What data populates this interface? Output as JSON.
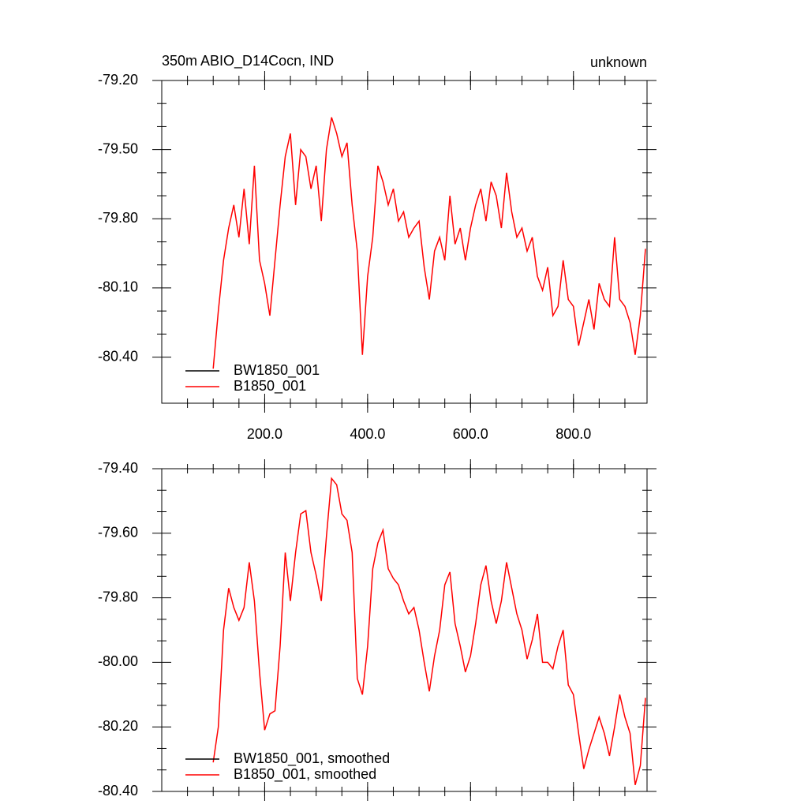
{
  "chart_data": [
    {
      "type": "line",
      "title": "350m ABIO_D14Cocn, IND",
      "right_title": "unknown",
      "x": [
        100,
        110,
        120,
        130,
        140,
        150,
        160,
        170,
        180,
        190,
        200,
        210,
        220,
        230,
        240,
        250,
        260,
        270,
        280,
        290,
        300,
        310,
        320,
        330,
        340,
        350,
        360,
        370,
        380,
        390,
        400,
        410,
        420,
        430,
        440,
        450,
        460,
        470,
        480,
        490,
        500,
        510,
        520,
        530,
        540,
        550,
        560,
        570,
        580,
        590,
        600,
        610,
        620,
        630,
        640,
        650,
        660,
        670,
        680,
        690,
        700,
        710,
        720,
        730,
        740,
        750,
        760,
        770,
        780,
        790,
        800,
        810,
        820,
        830,
        840,
        850,
        860,
        870,
        880,
        890,
        900,
        910,
        920,
        930,
        940
      ],
      "series": [
        {
          "color": "#ff0000",
          "values": [
            -80.45,
            -80.2,
            -79.98,
            -79.84,
            -79.74,
            -79.88,
            -79.67,
            -79.91,
            -79.57,
            -79.98,
            -80.08,
            -80.22,
            -79.98,
            -79.74,
            -79.53,
            -79.43,
            -79.74,
            -79.5,
            -79.53,
            -79.67,
            -79.57,
            -79.81,
            -79.5,
            -79.36,
            -79.43,
            -79.53,
            -79.47,
            -79.74,
            -79.94,
            -80.39,
            -80.05,
            -79.88,
            -79.57,
            -79.64,
            -79.74,
            -79.67,
            -79.81,
            -79.77,
            -79.88,
            -79.84,
            -79.81,
            -80.01,
            -80.15,
            -79.94,
            -79.88,
            -79.98,
            -79.7,
            -79.91,
            -79.84,
            -79.98,
            -79.84,
            -79.74,
            -79.67,
            -79.81,
            -79.64,
            -79.7,
            -79.84,
            -79.6,
            -79.77,
            -79.88,
            -79.84,
            -79.94,
            -79.88,
            -80.05,
            -80.11,
            -80.01,
            -80.22,
            -80.18,
            -79.98,
            -80.15,
            -80.18,
            -80.35,
            -80.25,
            -80.15,
            -80.28,
            -80.08,
            -80.15,
            -80.18,
            -79.88,
            -80.15,
            -80.18,
            -80.25,
            -80.39,
            -80.22,
            -79.93
          ]
        }
      ],
      "legend": [
        {
          "name": "BW1850_001",
          "color": "#000000"
        },
        {
          "name": "B1850_001",
          "color": "#ff0000"
        }
      ],
      "xlim": [
        0,
        943
      ],
      "ylim": [
        -80.6,
        -79.2
      ],
      "xticks": [
        {
          "value": 200,
          "label": "200.0"
        },
        {
          "value": 400,
          "label": "400.0"
        },
        {
          "value": 600,
          "label": "600.0"
        },
        {
          "value": 800,
          "label": "800.0"
        }
      ],
      "yticks": [
        {
          "value": -79.2,
          "label": "-79.20"
        },
        {
          "value": -79.5,
          "label": "-79.50"
        },
        {
          "value": -79.8,
          "label": "-79.80"
        },
        {
          "value": -80.1,
          "label": "-80.10"
        },
        {
          "value": -80.4,
          "label": "-80.40"
        }
      ]
    },
    {
      "type": "line",
      "x": [
        100,
        110,
        120,
        130,
        140,
        150,
        160,
        170,
        180,
        190,
        200,
        210,
        220,
        230,
        240,
        250,
        260,
        270,
        280,
        290,
        300,
        310,
        320,
        330,
        340,
        350,
        360,
        370,
        380,
        390,
        400,
        410,
        420,
        430,
        440,
        450,
        460,
        470,
        480,
        490,
        500,
        510,
        520,
        530,
        540,
        550,
        560,
        570,
        580,
        590,
        600,
        610,
        620,
        630,
        640,
        650,
        660,
        670,
        680,
        690,
        700,
        710,
        720,
        730,
        740,
        750,
        760,
        770,
        780,
        790,
        800,
        810,
        820,
        830,
        840,
        850,
        860,
        870,
        880,
        890,
        900,
        910,
        920,
        930,
        940
      ],
      "series": [
        {
          "color": "#ff0000",
          "values": [
            -80.31,
            -80.2,
            -79.9,
            -79.77,
            -79.83,
            -79.87,
            -79.83,
            -79.69,
            -79.81,
            -80.03,
            -80.21,
            -80.16,
            -80.15,
            -79.95,
            -79.66,
            -79.81,
            -79.66,
            -79.54,
            -79.53,
            -79.66,
            -79.73,
            -79.81,
            -79.61,
            -79.43,
            -79.45,
            -79.54,
            -79.56,
            -79.66,
            -80.05,
            -80.1,
            -79.95,
            -79.71,
            -79.63,
            -79.59,
            -79.71,
            -79.74,
            -79.76,
            -79.81,
            -79.85,
            -79.83,
            -79.9,
            -80.0,
            -80.09,
            -79.98,
            -79.9,
            -79.76,
            -79.72,
            -79.88,
            -79.95,
            -80.03,
            -79.98,
            -79.88,
            -79.76,
            -79.7,
            -79.81,
            -79.88,
            -79.81,
            -79.69,
            -79.77,
            -79.85,
            -79.9,
            -79.99,
            -79.93,
            -79.85,
            -80.0,
            -80.0,
            -80.02,
            -79.95,
            -79.9,
            -80.07,
            -80.1,
            -80.22,
            -80.33,
            -80.27,
            -80.22,
            -80.17,
            -80.22,
            -80.29,
            -80.2,
            -80.1,
            -80.17,
            -80.22,
            -80.38,
            -80.32,
            -80.11
          ]
        }
      ],
      "legend": [
        {
          "name": "BW1850_001, smoothed",
          "color": "#000000"
        },
        {
          "name": "B1850_001, smoothed",
          "color": "#ff0000"
        }
      ],
      "xlim": [
        0,
        943
      ],
      "ylim": [
        -80.4,
        -79.4
      ],
      "xticks": [
        200,
        400,
        600,
        800
      ],
      "yticks": [
        {
          "value": -79.4,
          "label": "-79.40"
        },
        {
          "value": -79.6,
          "label": "-79.60"
        },
        {
          "value": -79.8,
          "label": "-79.80"
        },
        {
          "value": -80.0,
          "label": "-80.00"
        },
        {
          "value": -80.2,
          "label": "-80.20"
        },
        {
          "value": -80.4,
          "label": "-80.40"
        }
      ]
    }
  ]
}
